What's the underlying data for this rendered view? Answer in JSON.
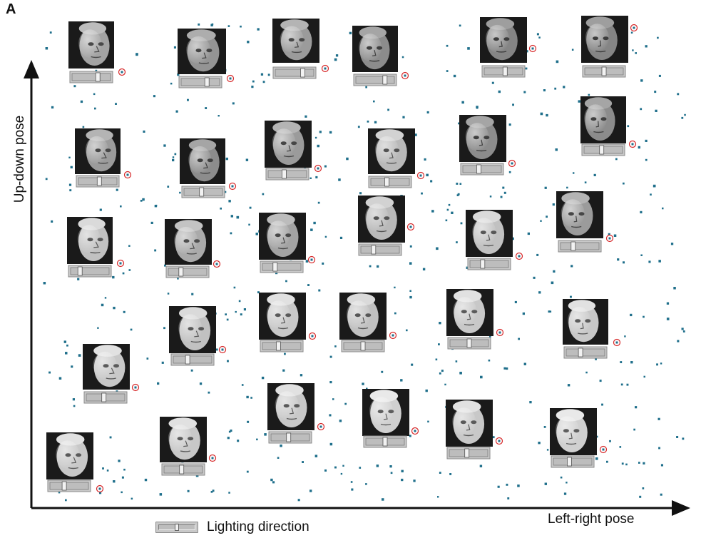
{
  "panel_label": "A",
  "chart_data": {
    "type": "scatter",
    "xlabel": "Left-right pose",
    "ylabel": "Up-down pose",
    "legend": {
      "icon": "lighting-slider-icon",
      "label": "Lighting direction"
    },
    "colors": {
      "points": "#1f6f8b",
      "highlight_ring": "#d62728",
      "axes": "#111111"
    }
  }
}
